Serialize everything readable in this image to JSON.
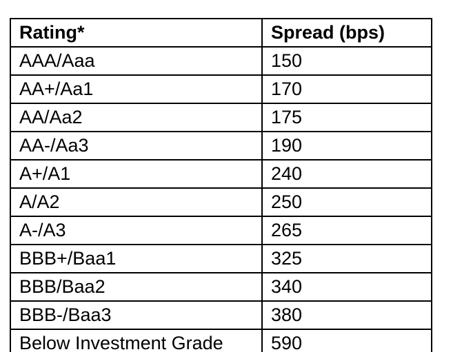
{
  "colors": {
    "background": "#ffffff",
    "border": "#000000",
    "text": "#000000"
  },
  "table": {
    "columns": [
      "Rating*",
      "Spread (bps)"
    ],
    "rows": [
      {
        "rating": "AAA/Aaa",
        "spread": "150"
      },
      {
        "rating": "AA+/Aa1",
        "spread": "170"
      },
      {
        "rating": "AA/Aa2",
        "spread": "175"
      },
      {
        "rating": "AA-/Aa3",
        "spread": "190"
      },
      {
        "rating": "A+/A1",
        "spread": "240"
      },
      {
        "rating": "A/A2",
        "spread": "250"
      },
      {
        "rating": "A-/A3",
        "spread": "265"
      },
      {
        "rating": "BBB+/Baa1",
        "spread": "325"
      },
      {
        "rating": "BBB/Baa2",
        "spread": "340"
      },
      {
        "rating": "BBB-/Baa3",
        "spread": "380"
      },
      {
        "rating": "Below Investment Grade",
        "spread": "590"
      }
    ]
  }
}
